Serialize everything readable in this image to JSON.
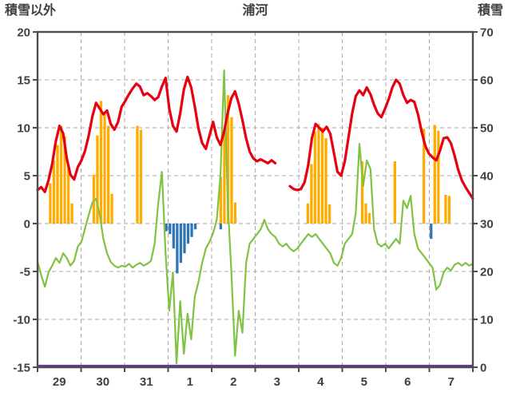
{
  "header": {
    "left_axis_title": "積雪以外",
    "title": "浦河",
    "right_axis_title": "積雪"
  },
  "chart_data": {
    "type": "line",
    "title": "浦河",
    "left_axis": {
      "label": "積雪以外",
      "min": -15,
      "max": 20,
      "ticks": [
        20,
        15,
        10,
        5,
        0,
        -5,
        -10,
        -15
      ]
    },
    "right_axis": {
      "label": "積雪",
      "min": 0,
      "max": 70,
      "ticks": [
        70,
        60,
        50,
        40,
        30,
        20,
        10,
        0
      ]
    },
    "x_axis": {
      "days": 10,
      "day_labels": [
        "29",
        "30",
        "31",
        "1",
        "2",
        "3",
        "4",
        "5",
        "6",
        "7"
      ]
    },
    "grid": {
      "color": "#aaaaaa",
      "border_color": "#4d4d4d"
    },
    "series": [
      {
        "name": "orange-bars",
        "type": "bar",
        "axis": "left",
        "color": "#ffac00",
        "values": [
          0,
          0,
          0,
          4.2,
          6.6,
          8.2,
          10.2,
          9.1,
          6.1,
          2.1,
          0,
          0,
          0,
          0,
          0,
          5.1,
          9.2,
          12.8,
          11.4,
          10.2,
          3.1,
          0,
          0,
          0,
          0,
          0,
          0,
          10.2,
          9.8,
          0,
          0,
          0,
          0,
          0,
          0,
          0,
          0,
          0,
          0,
          0,
          0,
          0,
          0,
          0,
          0,
          0,
          0,
          0,
          0,
          0,
          4.9,
          9.7,
          13.4,
          11.1,
          2.2,
          0,
          0,
          0,
          0,
          0,
          0,
          0,
          0,
          0,
          0,
          0,
          0,
          0,
          0,
          0,
          0,
          0,
          0,
          0,
          2.1,
          6.2,
          9.6,
          10.4,
          10.0,
          8.9,
          2.0,
          0,
          0,
          0,
          0,
          0,
          0,
          0,
          0,
          6.5,
          2.1,
          1.1,
          0,
          0,
          0,
          0,
          0,
          0,
          6.5,
          0,
          0,
          0,
          0,
          0,
          0,
          0,
          9.9,
          0,
          0,
          10.3,
          9.7,
          0,
          3.0,
          2.9,
          0,
          0,
          0,
          0,
          0,
          0
        ]
      },
      {
        "name": "blue-bars",
        "type": "bar",
        "axis": "left",
        "color": "#2e75b6",
        "values": [
          0,
          0,
          0,
          0,
          0,
          0,
          0,
          0,
          0,
          0,
          0,
          0,
          0,
          0,
          0,
          0,
          0,
          0,
          0,
          0,
          0,
          0,
          0,
          0,
          0,
          0,
          0,
          0,
          0,
          0,
          0,
          0,
          0,
          0,
          0,
          -0.8,
          -1.1,
          -2.6,
          -5.2,
          -4.1,
          -3.1,
          -2.1,
          -1.4,
          -0.6,
          0,
          0,
          0,
          0,
          0,
          0,
          -0.6,
          0,
          0,
          0,
          0,
          0,
          0,
          0,
          0,
          0,
          0,
          0,
          0,
          0,
          0,
          0,
          0,
          0,
          0,
          0,
          0,
          0,
          0,
          0,
          0,
          0,
          0,
          0,
          0,
          0,
          0,
          0,
          0,
          0,
          0,
          0,
          0,
          0,
          0,
          0,
          0,
          0,
          0,
          0,
          0,
          0,
          0,
          0,
          0,
          0,
          0,
          0,
          0,
          0,
          0,
          0,
          0,
          0,
          -1.6,
          0,
          0,
          0,
          0,
          0,
          0,
          0,
          0,
          0,
          0,
          0
        ]
      },
      {
        "name": "purple-line",
        "type": "line",
        "axis": "right",
        "color": "#7030a0",
        "width": 2.2,
        "values": [
          0,
          0
        ]
      },
      {
        "name": "green-line",
        "type": "line",
        "axis": "left",
        "color": "#80c342",
        "width": 2.2,
        "values": [
          -4.0,
          -5.4,
          -6.6,
          -5.1,
          -4.4,
          -3.6,
          -4.1,
          -3.1,
          -3.6,
          -4.4,
          -3.9,
          -2.4,
          -1.9,
          -0.5,
          0.9,
          2.2,
          2.6,
          0.9,
          -1.6,
          -3.1,
          -4.0,
          -4.4,
          -4.6,
          -4.4,
          -4.5,
          -4.2,
          -4.6,
          -4.3,
          -4.1,
          -4.4,
          -4.2,
          -3.9,
          -2.1,
          2.1,
          5.4,
          -3.1,
          -9.1,
          -5.1,
          -14.6,
          -8.1,
          -13.6,
          -9.4,
          -12.1,
          -7.6,
          -6.1,
          -4.1,
          -2.6,
          -1.9,
          -1.0,
          0.4,
          5.0,
          16.0,
          2.0,
          -5.1,
          -13.8,
          -9.1,
          -11.4,
          -4.1,
          -2.1,
          -1.6,
          -1.1,
          -0.6,
          0.4,
          -0.6,
          -1.1,
          -1.4,
          -2.1,
          -2.4,
          -2.1,
          -2.6,
          -2.9,
          -2.6,
          -2.1,
          -1.6,
          -1.1,
          -1.4,
          -1.1,
          -1.6,
          -2.1,
          -2.6,
          -3.1,
          -4.1,
          -4.4,
          -3.6,
          -2.1,
          -1.6,
          -1.1,
          1.1,
          8.3,
          3.9,
          6.6,
          5.7,
          -0.6,
          -2.1,
          -2.4,
          -2.1,
          -2.6,
          -2.1,
          -1.6,
          -2.1,
          2.4,
          1.6,
          2.9,
          -1.1,
          -2.6,
          -3.1,
          -3.6,
          -4.1,
          -4.6,
          -6.9,
          -6.4,
          -5.1,
          -4.6,
          -4.9,
          -4.3,
          -4.1,
          -4.4,
          -4.1,
          -4.4,
          -4.2
        ]
      },
      {
        "name": "red-line",
        "type": "line",
        "axis": "left",
        "color": "#e60012",
        "width": 3.2,
        "values": [
          3.5,
          3.8,
          3.3,
          4.5,
          6.2,
          8.6,
          10.2,
          9.4,
          6.8,
          5.1,
          4.6,
          5.9,
          6.6,
          7.6,
          9.2,
          11.2,
          12.6,
          12.0,
          11.4,
          11.8,
          10.4,
          9.8,
          10.6,
          12.2,
          12.8,
          13.5,
          14.1,
          14.6,
          14.3,
          13.4,
          13.6,
          13.3,
          12.9,
          13.2,
          14.3,
          15.2,
          12.0,
          10.2,
          9.6,
          11.5,
          14.0,
          15.3,
          14.2,
          12.2,
          9.9,
          8.4,
          7.8,
          9.2,
          10.6,
          9.0,
          8.2,
          9.6,
          11.6,
          13.1,
          13.8,
          12.5,
          10.8,
          8.9,
          7.5,
          6.8,
          6.5,
          6.7,
          6.5,
          6.3,
          6.6,
          6.3,
          null,
          null,
          null,
          3.9,
          3.6,
          3.5,
          3.6,
          4.3,
          6.1,
          8.9,
          10.4,
          10.0,
          9.6,
          10.1,
          9.4,
          7.4,
          5.4,
          5.0,
          6.5,
          9.0,
          11.5,
          13.3,
          13.9,
          13.4,
          14.2,
          13.5,
          12.4,
          11.5,
          11.1,
          12.0,
          13.0,
          14.2,
          15.0,
          14.6,
          13.4,
          12.6,
          12.9,
          12.7,
          11.4,
          9.6,
          8.1,
          7.3,
          6.9,
          6.6,
          7.6,
          8.9,
          9.0,
          8.4,
          7.1,
          5.6,
          4.5,
          3.8,
          3.2,
          2.6
        ]
      }
    ]
  }
}
